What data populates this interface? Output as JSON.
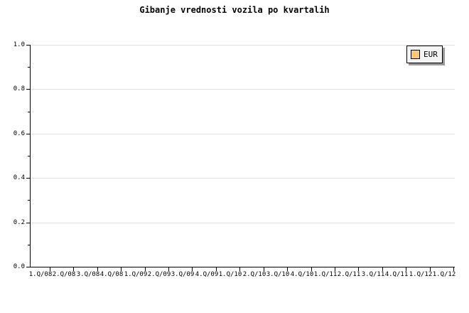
{
  "title": "Gibanje vrednosti vozila po kvartalih",
  "legend": {
    "label": "EUR",
    "swatch_color": "#FFC868",
    "background": "#f4f4f4",
    "shadow_color": "#999999",
    "position": "top-right"
  },
  "colors": {
    "background": "#ffffff",
    "axis": "#000000",
    "grid": "#e0e0e0",
    "text": "#000000"
  },
  "chart_data": {
    "type": "line",
    "title": "Gibanje vrednosti vozila po kvartalih",
    "categories": [
      "1.Q/08",
      "2.Q/08",
      "3.Q/08",
      "4.Q/08",
      "1.Q/09",
      "2.Q/09",
      "3.Q/09",
      "4.Q/09",
      "1.Q/10",
      "2.Q/10",
      "3.Q/10",
      "4.Q/10",
      "1.Q/11",
      "2.Q/11",
      "3.Q/11",
      "4.Q/11",
      "1.Q/12",
      "1.Q/12"
    ],
    "series": [
      {
        "name": "EUR",
        "color": "#FFC868",
        "values": []
      }
    ],
    "xlabel": "",
    "ylabel": "",
    "ylim": [
      0.0,
      1.0
    ],
    "ytick_labels": [
      "0.0",
      "0.2",
      "0.4",
      "0.6",
      "0.8",
      "1.0"
    ],
    "y_major_step": 0.2,
    "y_minor_step": 0.1,
    "grid": "horizontal-major-only",
    "legend_position": "top-right"
  }
}
